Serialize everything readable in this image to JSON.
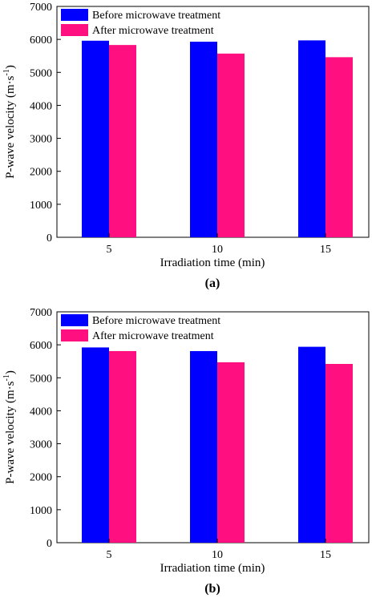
{
  "colors": {
    "before": "#0000ff",
    "after": "#ff0f7f",
    "axis": "#000000",
    "background": "#ffffff"
  },
  "chart_data": [
    {
      "type": "bar",
      "panel_label": "(a)",
      "categories": [
        "5",
        "10",
        "15"
      ],
      "series": [
        {
          "name": "Before microwave treatment",
          "values": [
            5960,
            5930,
            5970
          ]
        },
        {
          "name": "After microwave treatment",
          "values": [
            5830,
            5570,
            5460
          ]
        }
      ],
      "xlabel": "Irradiation time (min)",
      "ylabel_main": "P-wave velocity (m·s",
      "ylabel_sup": "-1",
      "ylabel_close": ")",
      "ylim": [
        0,
        7000
      ],
      "yticks": [
        "0",
        "1000",
        "2000",
        "3000",
        "4000",
        "5000",
        "6000",
        "7000"
      ],
      "legend_position": "top-left",
      "grid": false
    },
    {
      "type": "bar",
      "panel_label": "(b)",
      "categories": [
        "5",
        "10",
        "15"
      ],
      "series": [
        {
          "name": "Before microwave treatment",
          "values": [
            5920,
            5810,
            5940
          ]
        },
        {
          "name": "After microwave treatment",
          "values": [
            5810,
            5470,
            5420
          ]
        }
      ],
      "xlabel": "Irradiation time (min)",
      "ylabel_main": "P-wave velocity (m·s",
      "ylabel_sup": "-1",
      "ylabel_close": ")",
      "ylim": [
        0,
        7000
      ],
      "yticks": [
        "0",
        "1000",
        "2000",
        "3000",
        "4000",
        "5000",
        "6000",
        "7000"
      ],
      "legend_position": "top-left",
      "grid": false
    }
  ]
}
